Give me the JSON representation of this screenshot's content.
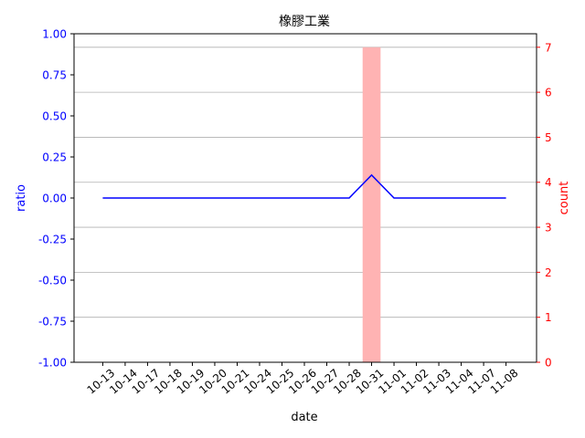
{
  "chart_data": {
    "type": "line",
    "title": "橡膠工業",
    "xlabel": "date",
    "ylabel_left": "ratio",
    "ylabel_right": "count",
    "categories": [
      "10-13",
      "10-14",
      "10-17",
      "10-18",
      "10-19",
      "10-20",
      "10-21",
      "10-24",
      "10-25",
      "10-26",
      "10-27",
      "10-28",
      "10-31",
      "11-01",
      "11-02",
      "11-03",
      "11-04",
      "11-07",
      "11-08"
    ],
    "series": [
      {
        "kind": "line",
        "axis": "left",
        "color": "#0000ff",
        "values": [
          0,
          0,
          0,
          0,
          0,
          0,
          0,
          0,
          0,
          0,
          0,
          0,
          0.14,
          0,
          0,
          0,
          0,
          0,
          0
        ]
      },
      {
        "kind": "bar",
        "axis": "right",
        "color": "#ffb3b3",
        "values": [
          0,
          0,
          0,
          0,
          0,
          0,
          0,
          0,
          0,
          0,
          0,
          0,
          7,
          0,
          0,
          0,
          0,
          0,
          0
        ]
      }
    ],
    "ylim_left": [
      -1.0,
      1.0
    ],
    "yticks_left": [
      "1.00",
      "0.75",
      "0.50",
      "0.25",
      "0.00",
      "-0.25",
      "-0.50",
      "-0.75",
      "-1.00"
    ],
    "ylim_right": [
      0,
      7.3
    ],
    "yticks_right": [
      "0",
      "1",
      "2",
      "3",
      "4",
      "5",
      "6",
      "7"
    ],
    "left_axis_color": "#0000ff",
    "right_axis_color": "#ff0000",
    "grid": "right-axis horizontal lines"
  }
}
